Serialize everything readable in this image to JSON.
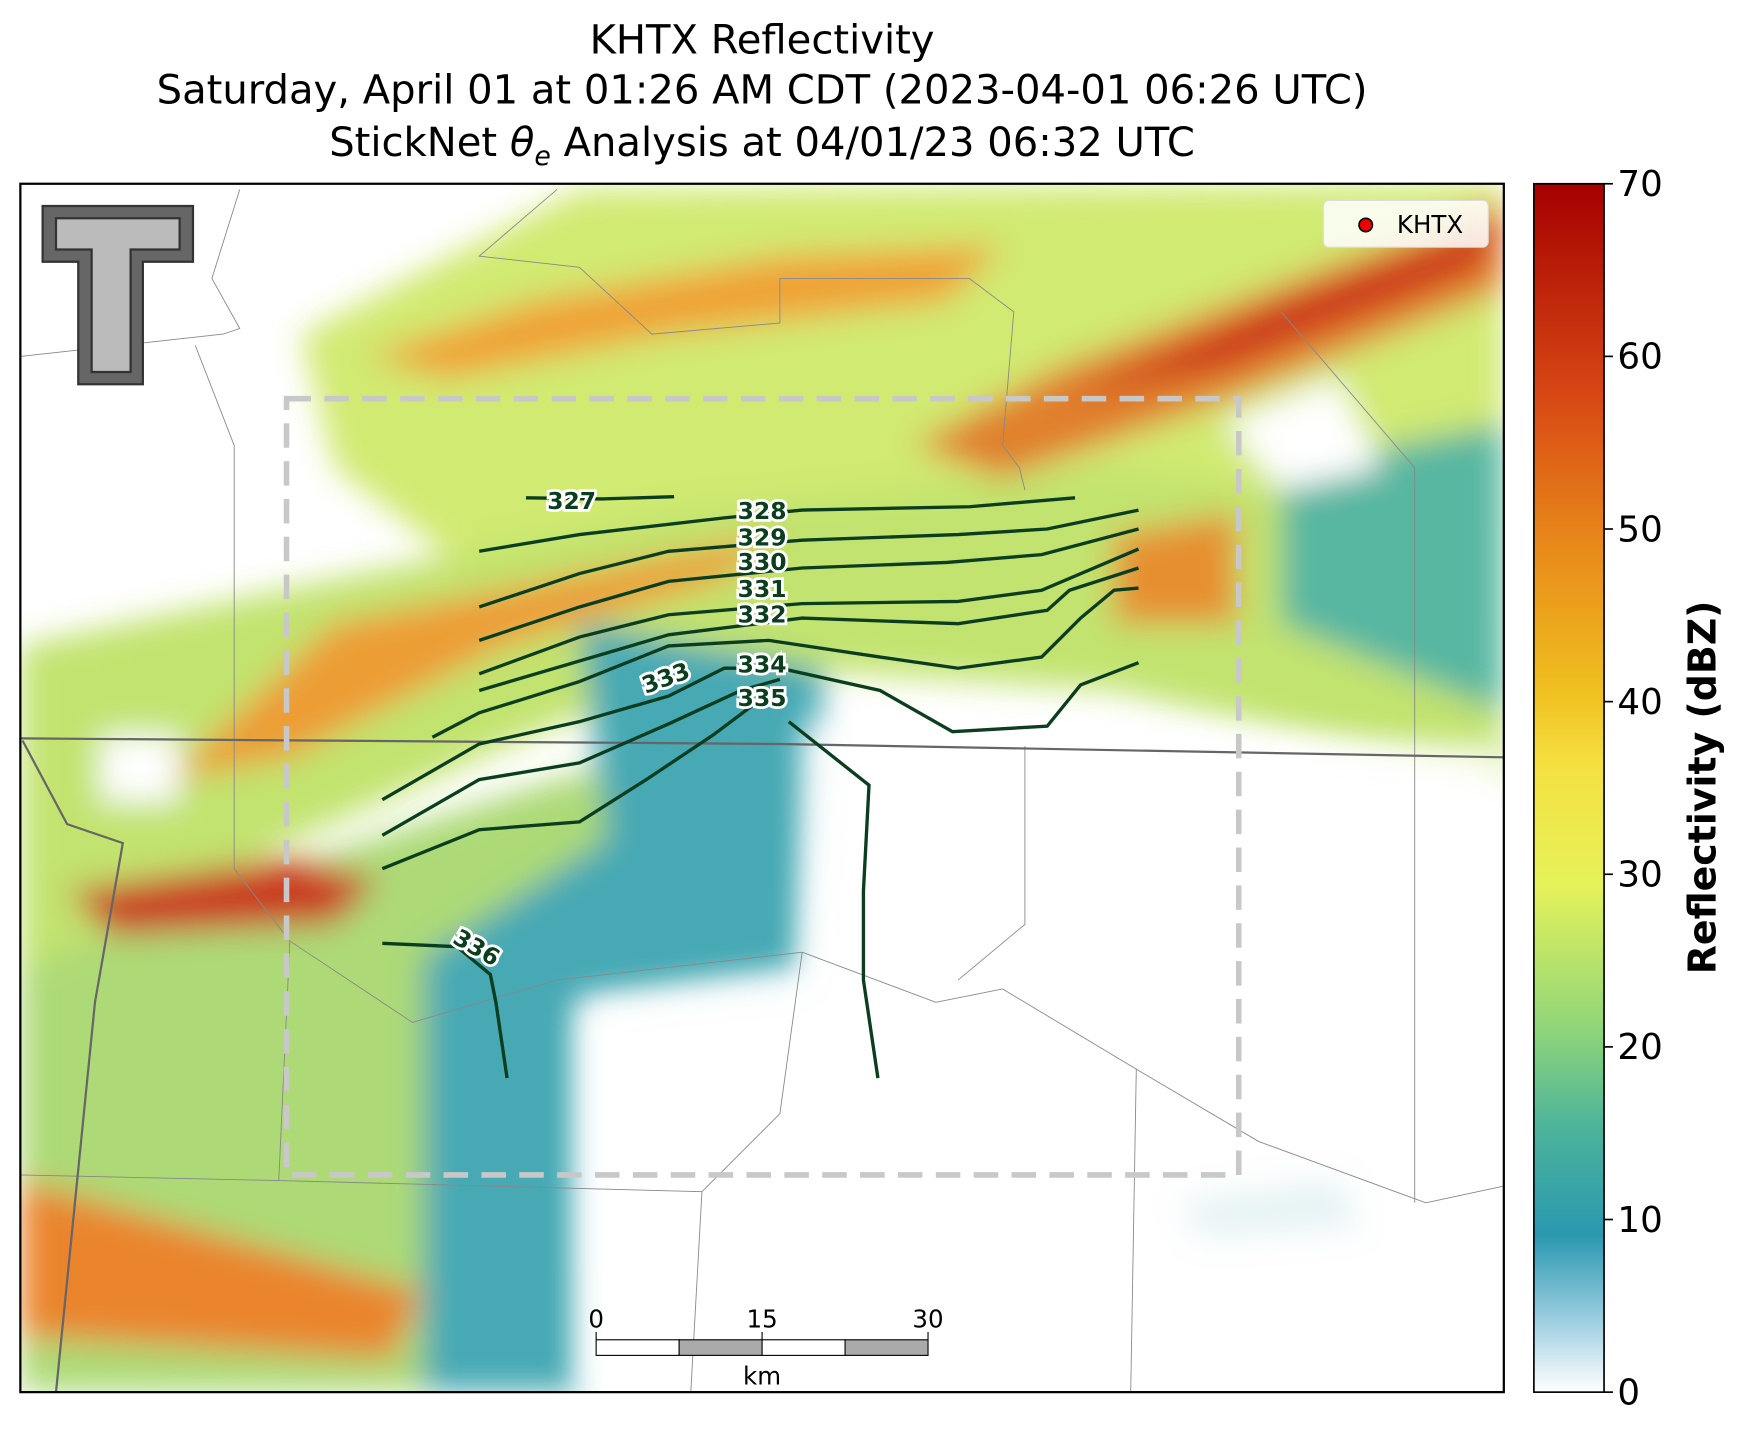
{
  "title": {
    "line1": "KHTX Reflectivity",
    "line2": "Saturday, April 01 at 01:26 AM CDT (2023-04-01 06:26 UTC)",
    "line3_prefix": "StickNet",
    "line3_symbol": "θ",
    "line3_subscript": "e",
    "line3_suffix": "Analysis at 04/01/23 06:32 UTC"
  },
  "legend": {
    "label": "KHTX"
  },
  "colorbar": {
    "label": "Reflectivity (dBZ)",
    "range": [
      0,
      70
    ],
    "ticks": [
      0,
      10,
      20,
      30,
      40,
      50,
      60,
      70
    ]
  },
  "contours": [
    327,
    328,
    329,
    330,
    331,
    332,
    333,
    334,
    335,
    336
  ],
  "scale_bar": {
    "ticks": [
      0,
      15,
      30
    ],
    "unit": "km"
  }
}
